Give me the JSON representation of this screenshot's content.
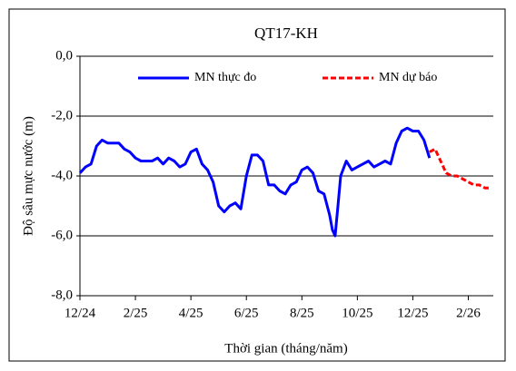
{
  "chart_data": {
    "type": "line",
    "title": "QT17-KH",
    "xlabel": "Thời gian (tháng/năm)",
    "ylabel": "Độ sâu mực nước (m)",
    "xlim": [
      0,
      14.9
    ],
    "ylim": [
      -8,
      0
    ],
    "xticks": [
      {
        "value": 0,
        "label": "12/24"
      },
      {
        "value": 2,
        "label": "2/25"
      },
      {
        "value": 4,
        "label": "4/25"
      },
      {
        "value": 6,
        "label": "6/25"
      },
      {
        "value": 8,
        "label": "8/25"
      },
      {
        "value": 10,
        "label": "10/25"
      },
      {
        "value": 12,
        "label": "12/25"
      },
      {
        "value": 14,
        "label": "2/26"
      }
    ],
    "yticks": [
      {
        "value": 0,
        "label": "0,0"
      },
      {
        "value": -2,
        "label": "-2,0"
      },
      {
        "value": -4,
        "label": "-4,0"
      },
      {
        "value": -6,
        "label": "-6,0"
      },
      {
        "value": -8,
        "label": "-8,0"
      }
    ],
    "grid": true,
    "legend": "top",
    "series": [
      {
        "name": "MN thực đo",
        "color": "#0000ff",
        "style": "solid",
        "x": [
          0,
          0.2,
          0.4,
          0.6,
          0.8,
          1.0,
          1.2,
          1.4,
          1.6,
          1.8,
          2.0,
          2.2,
          2.4,
          2.6,
          2.8,
          3.0,
          3.2,
          3.4,
          3.6,
          3.8,
          4.0,
          4.2,
          4.4,
          4.6,
          4.8,
          5.0,
          5.2,
          5.4,
          5.6,
          5.8,
          6.0,
          6.2,
          6.4,
          6.6,
          6.8,
          7.0,
          7.2,
          7.4,
          7.6,
          7.8,
          8.0,
          8.2,
          8.4,
          8.6,
          8.8,
          9.0,
          9.1,
          9.2,
          9.3,
          9.4,
          9.6,
          9.8,
          10.0,
          10.2,
          10.4,
          10.6,
          10.8,
          11.0,
          11.2,
          11.4,
          11.6,
          11.8,
          12.0,
          12.2,
          12.4,
          12.6
        ],
        "values": [
          -3.9,
          -3.7,
          -3.6,
          -3.0,
          -2.8,
          -2.9,
          -2.9,
          -2.9,
          -3.1,
          -3.2,
          -3.4,
          -3.5,
          -3.5,
          -3.5,
          -3.4,
          -3.6,
          -3.4,
          -3.5,
          -3.7,
          -3.6,
          -3.2,
          -3.1,
          -3.6,
          -3.8,
          -4.2,
          -5.0,
          -5.2,
          -5.0,
          -4.9,
          -5.1,
          -4.0,
          -3.3,
          -3.3,
          -3.5,
          -4.3,
          -4.3,
          -4.5,
          -4.6,
          -4.3,
          -4.2,
          -3.8,
          -3.7,
          -3.9,
          -4.5,
          -4.6,
          -5.3,
          -5.8,
          -6.0,
          -5.0,
          -4.0,
          -3.5,
          -3.8,
          -3.7,
          -3.6,
          -3.5,
          -3.7,
          -3.6,
          -3.5,
          -3.6,
          -2.9,
          -2.5,
          -2.4,
          -2.5,
          -2.5,
          -2.8,
          -3.4
        ]
      },
      {
        "name": "MN dự báo",
        "color": "#ff0000",
        "style": "dashed",
        "x": [
          12.6,
          12.8,
          13.0,
          13.2,
          13.4,
          13.6,
          13.8,
          14.0,
          14.2,
          14.4,
          14.6,
          14.8
        ],
        "values": [
          -3.2,
          -3.1,
          -3.5,
          -3.9,
          -4.0,
          -4.0,
          -4.1,
          -4.2,
          -4.3,
          -4.3,
          -4.4,
          -4.4
        ]
      }
    ]
  }
}
